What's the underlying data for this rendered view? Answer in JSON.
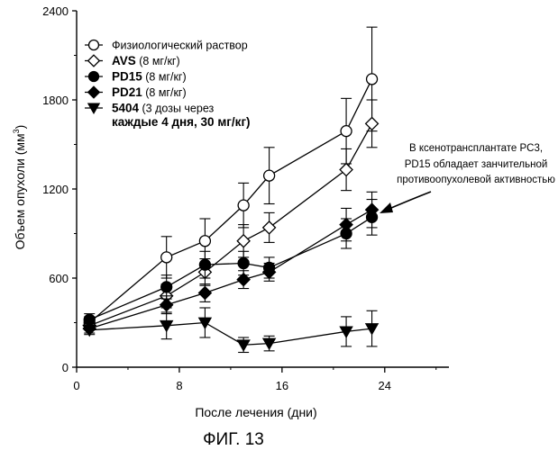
{
  "chart_data": {
    "type": "line",
    "title": "",
    "xlabel": "После лечения (дни)",
    "ylabel_main": "Объем опухоли (мм",
    "ylabel_sup": "3",
    "ylabel_close": ")",
    "xlim": [
      0,
      29
    ],
    "ylim": [
      0,
      2400
    ],
    "xticks": [
      0,
      8,
      16,
      24
    ],
    "yticks": [
      0,
      600,
      1200,
      1800,
      2400
    ],
    "grid": false,
    "legend_placement": "top-left",
    "series": [
      {
        "name": "Физиологический раствор",
        "name_bold": "",
        "name_rest": "Физиологический раствор",
        "name_line2": "",
        "marker": "circle-open",
        "x": [
          1,
          7,
          10,
          13,
          15,
          21,
          23
        ],
        "y": [
          300,
          740,
          850,
          1090,
          1290,
          1590,
          1940
        ],
        "err": [
          40,
          140,
          150,
          150,
          190,
          220,
          350
        ]
      },
      {
        "name": "AVS (8 мг/кг)",
        "name_bold": "AVS",
        "name_rest": " (8 мг/кг)",
        "name_line2": "",
        "marker": "diamond-open",
        "x": [
          1,
          7,
          10,
          13,
          15,
          21,
          23
        ],
        "y": [
          280,
          480,
          640,
          850,
          940,
          1330,
          1640
        ],
        "err": [
          30,
          80,
          90,
          110,
          100,
          140,
          160
        ]
      },
      {
        "name": "PD15 (8 мг/кг)",
        "name_bold": "PD15",
        "name_rest": " (8 мг/кг)",
        "name_line2": "",
        "marker": "circle-filled",
        "x": [
          1,
          7,
          10,
          13,
          15,
          21,
          23
        ],
        "y": [
          320,
          540,
          690,
          700,
          670,
          900,
          1010
        ],
        "err": [
          40,
          80,
          90,
          80,
          70,
          100,
          120
        ]
      },
      {
        "name": "PD21 (8 мг/кг)",
        "name_bold": "PD21",
        "name_rest": " (8 мг/кг)",
        "name_line2": "",
        "marker": "diamond-filled",
        "x": [
          1,
          7,
          10,
          13,
          15,
          21,
          23
        ],
        "y": [
          260,
          420,
          500,
          590,
          640,
          960,
          1060
        ],
        "err": [
          30,
          60,
          60,
          60,
          60,
          110,
          120
        ]
      },
      {
        "name": "5404 (3 дозы через каждые 4 дня, 30 мг/кг)",
        "name_bold": "5404",
        "name_rest": " (3 дозы через",
        "name_line2": "каждые 4 дня, 30 мг/кг)",
        "marker": "triangle-down-filled",
        "x": [
          1,
          7,
          10,
          13,
          15,
          21,
          23
        ],
        "y": [
          250,
          280,
          300,
          150,
          160,
          240,
          260
        ],
        "err": [
          30,
          90,
          100,
          50,
          50,
          100,
          120
        ]
      }
    ],
    "annotation": {
      "lines": [
        "В ксенотрансплантате PC3,",
        "PD15 обладает занчительной",
        "противоопухолевой активностью"
      ],
      "points_to_series": "PD21",
      "points_to_x": 23
    },
    "caption": "ФИГ. 13"
  }
}
